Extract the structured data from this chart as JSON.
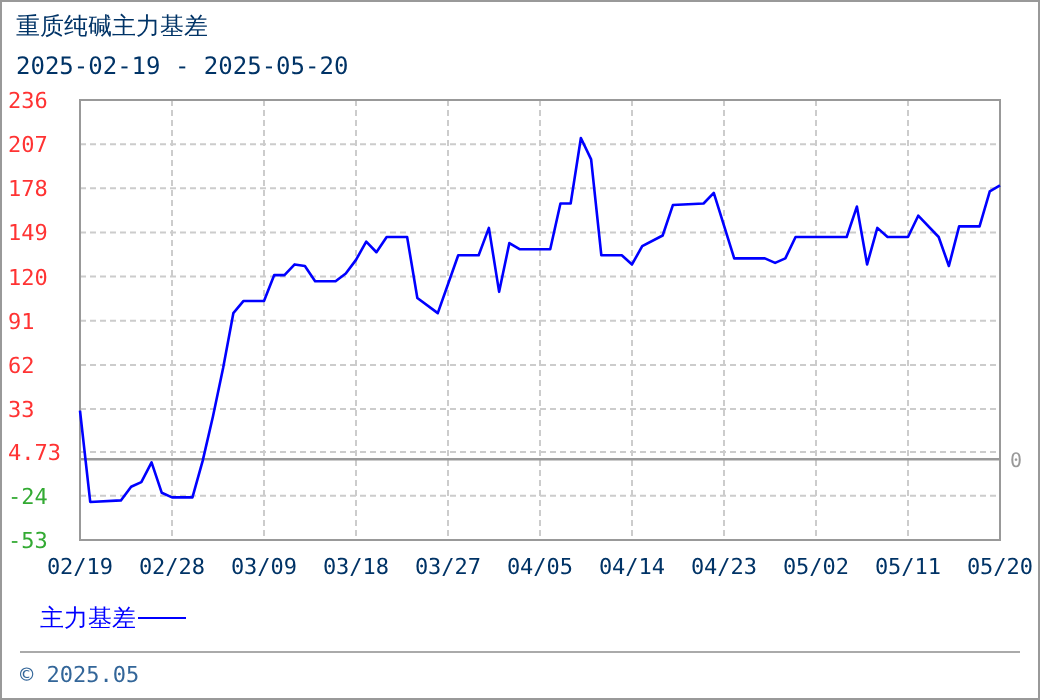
{
  "chart_data": {
    "type": "line",
    "title": "重质纯碱主力基差",
    "subtitle": "2025-02-19 - 2025-05-20",
    "x": [
      "2025-02-19",
      "2025-02-20",
      "2025-02-23",
      "2025-02-24",
      "2025-02-25",
      "2025-02-26",
      "2025-02-27",
      "2025-02-28",
      "2025-03-02",
      "2025-03-03",
      "2025-03-04",
      "2025-03-05",
      "2025-03-06",
      "2025-03-07",
      "2025-03-09",
      "2025-03-10",
      "2025-03-11",
      "2025-03-12",
      "2025-03-13",
      "2025-03-14",
      "2025-03-16",
      "2025-03-17",
      "2025-03-18",
      "2025-03-19",
      "2025-03-20",
      "2025-03-21",
      "2025-03-23",
      "2025-03-24",
      "2025-03-26",
      "2025-03-28",
      "2025-03-30",
      "2025-03-31",
      "2025-04-01",
      "2025-04-02",
      "2025-04-03",
      "2025-04-06",
      "2025-04-07",
      "2025-04-08",
      "2025-04-09",
      "2025-04-10",
      "2025-04-11",
      "2025-04-13",
      "2025-04-14",
      "2025-04-15",
      "2025-04-17",
      "2025-04-18",
      "2025-04-21",
      "2025-04-22",
      "2025-04-24",
      "2025-04-27",
      "2025-04-28",
      "2025-04-29",
      "2025-04-30",
      "2025-05-05",
      "2025-05-06",
      "2025-05-07",
      "2025-05-08",
      "2025-05-09",
      "2025-05-11",
      "2025-05-12",
      "2025-05-14",
      "2025-05-15",
      "2025-05-16",
      "2025-05-18",
      "2025-05-19",
      "2025-05-20"
    ],
    "series": [
      {
        "name": "主力基差",
        "color": "#0000ff",
        "values": [
          32,
          -28,
          -27,
          -18,
          -15,
          -2,
          -22,
          -25,
          -25,
          -1,
          28,
          60,
          96,
          104,
          104,
          121,
          121,
          128,
          127,
          117,
          117,
          122,
          131,
          143,
          136,
          146,
          146,
          106,
          96,
          134,
          134,
          152,
          110,
          142,
          138,
          138,
          168,
          168,
          211,
          197,
          134,
          134,
          128,
          140,
          147,
          167,
          168,
          175,
          132,
          132,
          129,
          132,
          146,
          146,
          166,
          128,
          152,
          146,
          146,
          160,
          146,
          127,
          153,
          153,
          176,
          180
        ]
      }
    ],
    "xlim": [
      "2025-02-19",
      "2025-05-20"
    ],
    "xticks": [
      {
        "value": "2025-02-19",
        "label": "02/19"
      },
      {
        "value": "2025-02-28",
        "label": "02/28"
      },
      {
        "value": "2025-03-09",
        "label": "03/09"
      },
      {
        "value": "2025-03-18",
        "label": "03/18"
      },
      {
        "value": "2025-03-27",
        "label": "03/27"
      },
      {
        "value": "2025-04-05",
        "label": "04/05"
      },
      {
        "value": "2025-04-14",
        "label": "04/14"
      },
      {
        "value": "2025-04-23",
        "label": "04/23"
      },
      {
        "value": "2025-05-02",
        "label": "05/02"
      },
      {
        "value": "2025-05-11",
        "label": "05/11"
      },
      {
        "value": "2025-05-20",
        "label": "05/20"
      }
    ],
    "ylim": [
      -53,
      236
    ],
    "yticks": [
      236,
      207,
      178,
      149,
      120,
      91,
      62,
      33,
      4.73,
      -24,
      -53
    ],
    "ref_lines": [
      {
        "axis": "y",
        "value": 0,
        "label": "0",
        "color": "#999999"
      }
    ],
    "annotations": [
      "© 2025.05"
    ],
    "grid": true,
    "legend": "bottom",
    "marker": "none",
    "line_style": "solid"
  }
}
